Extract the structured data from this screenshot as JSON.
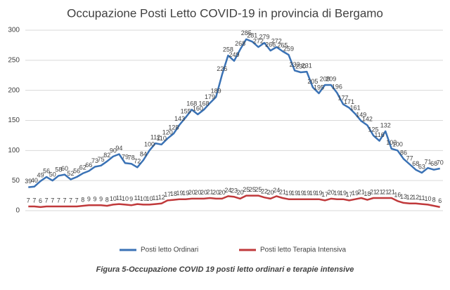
{
  "chart_data": {
    "type": "line",
    "title": "Occupazione Posti Letto COVID-19 in provincia di Bergamo",
    "caption": "Figura 5-Occupazione COVID 19 posti letto ordinari e terapie intensive",
    "categories": [
      null,
      null,
      null,
      null,
      null,
      null,
      null,
      null,
      null,
      null,
      null,
      null,
      null,
      null,
      null,
      null,
      null,
      null,
      null,
      null,
      null,
      null,
      null,
      null,
      null,
      null,
      null,
      null,
      null,
      null,
      null,
      null,
      null,
      null,
      null,
      null,
      null,
      null,
      null,
      null,
      null,
      null,
      null,
      null,
      null,
      null,
      null,
      null,
      null,
      null,
      null,
      null,
      null,
      null,
      null,
      null,
      null,
      null,
      null,
      null,
      null,
      null,
      null,
      null,
      null,
      null,
      null,
      null,
      null
    ],
    "series": [
      {
        "name": "Posti letto Ordinari",
        "color": "#3a72b5",
        "values": [
          39,
          40,
          49,
          56,
          50,
          58,
          60,
          52,
          56,
          62,
          66,
          73,
          75,
          82,
          90,
          94,
          79,
          78,
          72,
          84,
          100,
          112,
          110,
          120,
          128,
          143,
          155,
          168,
          160,
          168,
          179,
          189,
          226,
          258,
          249,
          268,
          285,
          281,
          272,
          279,
          266,
          272,
          265,
          259,
          233,
          230,
          231,
          205,
          195,
          209,
          209,
          196,
          177,
          171,
          161,
          149,
          142,
          125,
          116,
          132,
          103,
          100,
          86,
          77,
          68,
          63,
          71,
          68,
          70
        ]
      },
      {
        "name": "Posti letto Terapia Intensiva",
        "color": "#c0393b",
        "values": [
          7,
          7,
          6,
          7,
          7,
          7,
          7,
          7,
          7,
          8,
          9,
          9,
          9,
          8,
          10,
          11,
          10,
          9,
          11,
          10,
          10,
          11,
          12,
          17,
          18,
          19,
          19,
          20,
          20,
          20,
          21,
          20,
          20,
          24,
          23,
          20,
          25,
          25,
          25,
          22,
          20,
          24,
          21,
          19,
          19,
          19,
          19,
          19,
          19,
          17,
          20,
          19,
          19,
          17,
          19,
          21,
          18,
          21,
          21,
          21,
          21,
          16,
          13,
          12,
          12,
          11,
          10,
          8,
          6
        ]
      }
    ],
    "ylim": [
      0,
      300
    ],
    "yticks": [
      0,
      50,
      100,
      150,
      200,
      250,
      300
    ],
    "grid": true,
    "legend": "bottom"
  }
}
